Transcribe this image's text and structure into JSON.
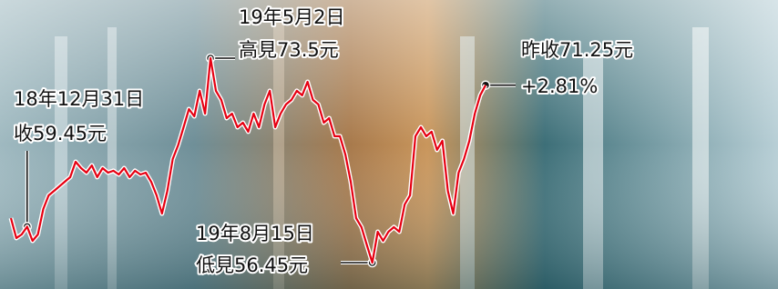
{
  "chart_data": {
    "type": "line",
    "color": "#e60012",
    "values": [
      60.16,
      58.5,
      58.8,
      59.45,
      58.27,
      58.8,
      60.92,
      62.06,
      62.44,
      62.82,
      63.2,
      63.58,
      64.86,
      64.33,
      63.95,
      64.56,
      63.58,
      64.33,
      63.95,
      64.11,
      63.8,
      64.33,
      63.58,
      64.11,
      63.8,
      63.95,
      63.2,
      62.06,
      60.54,
      62.44,
      65.09,
      66.23,
      67.74,
      69.26,
      68.65,
      70.78,
      68.88,
      73.5,
      70.78,
      70.02,
      68.5,
      68.88,
      67.74,
      68.12,
      67.37,
      68.88,
      67.74,
      69.64,
      70.78,
      67.74,
      68.88,
      69.64,
      70.02,
      70.78,
      70.4,
      71.53,
      70.02,
      69.64,
      68.12,
      68.5,
      66.99,
      66.99,
      65.47,
      63.2,
      60.16,
      59.41,
      57.89,
      56.45,
      59.03,
      58.27,
      59.03,
      59.41,
      59.03,
      61.3,
      62.06,
      66.99,
      67.74,
      66.99,
      67.37,
      65.85,
      66.61,
      62.44,
      60.54,
      63.95,
      65.09,
      66.61,
      68.88,
      70.4,
      71.25
    ],
    "annotations": [
      {
        "lines": [
          "18年12月31日",
          "收59.45元"
        ]
      },
      {
        "lines": [
          "19年5月2日",
          "高見73.5元"
        ]
      },
      {
        "lines": [
          "19年8月15日",
          "低見56.45元"
        ]
      },
      {
        "lines": [
          "昨收71.25元",
          "+2.81%"
        ]
      }
    ]
  }
}
